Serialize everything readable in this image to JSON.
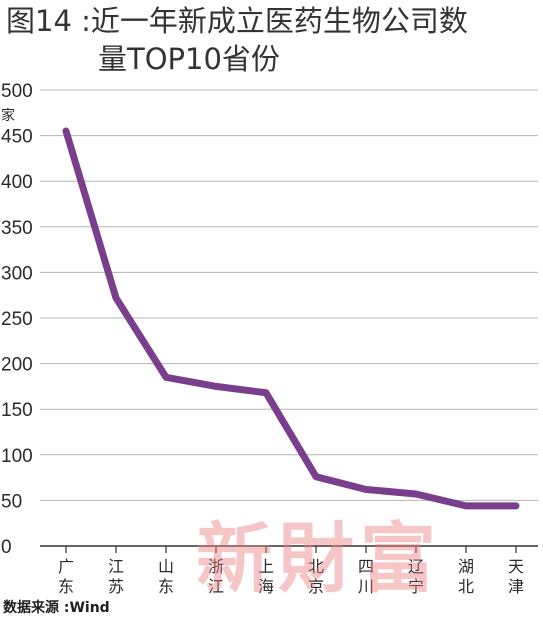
{
  "header": {
    "title_line1": "图14 :近一年新成立医药生物公司数",
    "title_line2": "量TOP10省份"
  },
  "chart_data": {
    "type": "line",
    "categories": [
      "广东",
      "江苏",
      "山东",
      "浙江",
      "上海",
      "北京",
      "四川",
      "辽宁",
      "湖北",
      "天津"
    ],
    "series": [
      {
        "values": [
          455,
          272,
          185,
          175,
          168,
          76,
          62,
          57,
          44,
          44
        ]
      }
    ],
    "ylabel": "家",
    "ylim": [
      0,
      500
    ],
    "yticks": [
      0,
      50,
      100,
      150,
      200,
      250,
      300,
      350,
      400,
      450,
      500
    ],
    "grid": true,
    "line_color": "#7a3f8c"
  },
  "footer": {
    "source": "数据来源 :Wind",
    "watermark": "新財富"
  }
}
